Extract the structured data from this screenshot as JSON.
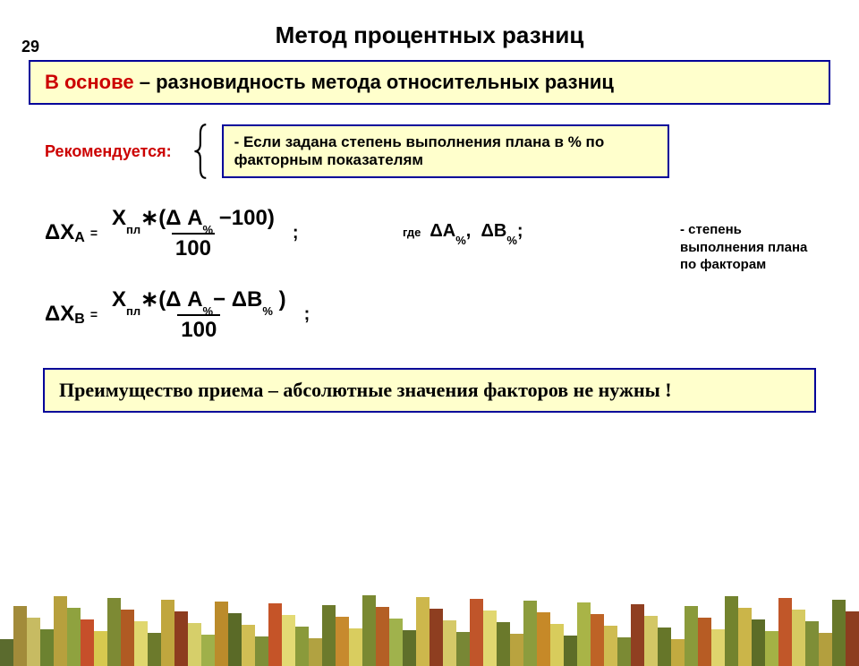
{
  "page_number": "29",
  "title": "Метод процентных разниц",
  "basis": {
    "red_prefix": "В основе",
    "dash": "  – ",
    "text": "разновидность метода относительных разниц"
  },
  "recommend": {
    "label": "Рекомендуется:",
    "box_text": "- Если задана степень выполнения плана в % по факторным показателям"
  },
  "formula1": {
    "lhs_delta": "Δ",
    "lhs_X": "X",
    "lhs_sub": "A",
    "numerator_X": "X",
    "numerator_sub": "пл",
    "numerator_mult": "∗(",
    "numerator_delta": "Δ",
    "numerator_A": "A",
    "numerator_pct": "%",
    "numerator_minus": "−100)",
    "denominator": "100",
    "semicolon": ";"
  },
  "formula2": {
    "lhs_delta": "Δ",
    "lhs_X": "X",
    "lhs_sub": "B",
    "numerator_X": "X",
    "numerator_sub": "пл",
    "numerator_mult": "∗(",
    "numerator_delta1": "Δ",
    "numerator_A": "A",
    "numerator_pct1": "%",
    "numerator_minus": "−",
    "numerator_delta2": "Δ",
    "numerator_B": "B",
    "numerator_pct2": "%",
    "numerator_close": ")",
    "denominator": "100",
    "semicolon": ";"
  },
  "where": {
    "label": "где",
    "sym1_delta": "Δ",
    "sym1_letter": "A",
    "sym1_pct": "%",
    "comma": ",",
    "sym2_delta": "Δ",
    "sym2_letter": "B",
    "sym2_pct": "%",
    "semicolon": ";",
    "description": "- степень выполнения плана по факторам"
  },
  "advantage": "Преимущество приема – абсолютные значения факторов не нужны !",
  "spectrum_colors": [
    "#5b6b2e",
    "#a28b3a",
    "#c7bb62",
    "#6c8230",
    "#b7a03d",
    "#8fa23f",
    "#c64f2a",
    "#d7c94f",
    "#7d8a34",
    "#b05a23",
    "#e0d76e",
    "#6c7a2c",
    "#c0a63e",
    "#8d3c1f",
    "#d6cf6a",
    "#9fb04a",
    "#bb8b2b",
    "#5a6a27",
    "#d1be54",
    "#7e8e37",
    "#c55428",
    "#e3da74",
    "#8a9a3b",
    "#b1a241",
    "#6c7a2c",
    "#c78a2e",
    "#d9cd5f",
    "#7a8932",
    "#b45f25",
    "#a0b24c",
    "#5f6f2a",
    "#cdb74c",
    "#8e3e20",
    "#d5c968",
    "#788735",
    "#c0552a",
    "#e1d770",
    "#6a792b",
    "#b9a33f",
    "#8c9c3d",
    "#c68928",
    "#d8cc5c",
    "#5d6d28",
    "#a9b447",
    "#be6326",
    "#cfbc51",
    "#7b8a34",
    "#903f21",
    "#d3c765",
    "#667629",
    "#c2aa40",
    "#8a9a3b",
    "#b75c24",
    "#dfd46d",
    "#73832e",
    "#cbb549",
    "#5c6c27",
    "#a4b145",
    "#c15729",
    "#d6ca61",
    "#7e8e37",
    "#b39f3e",
    "#68782a",
    "#8d3d1f"
  ]
}
